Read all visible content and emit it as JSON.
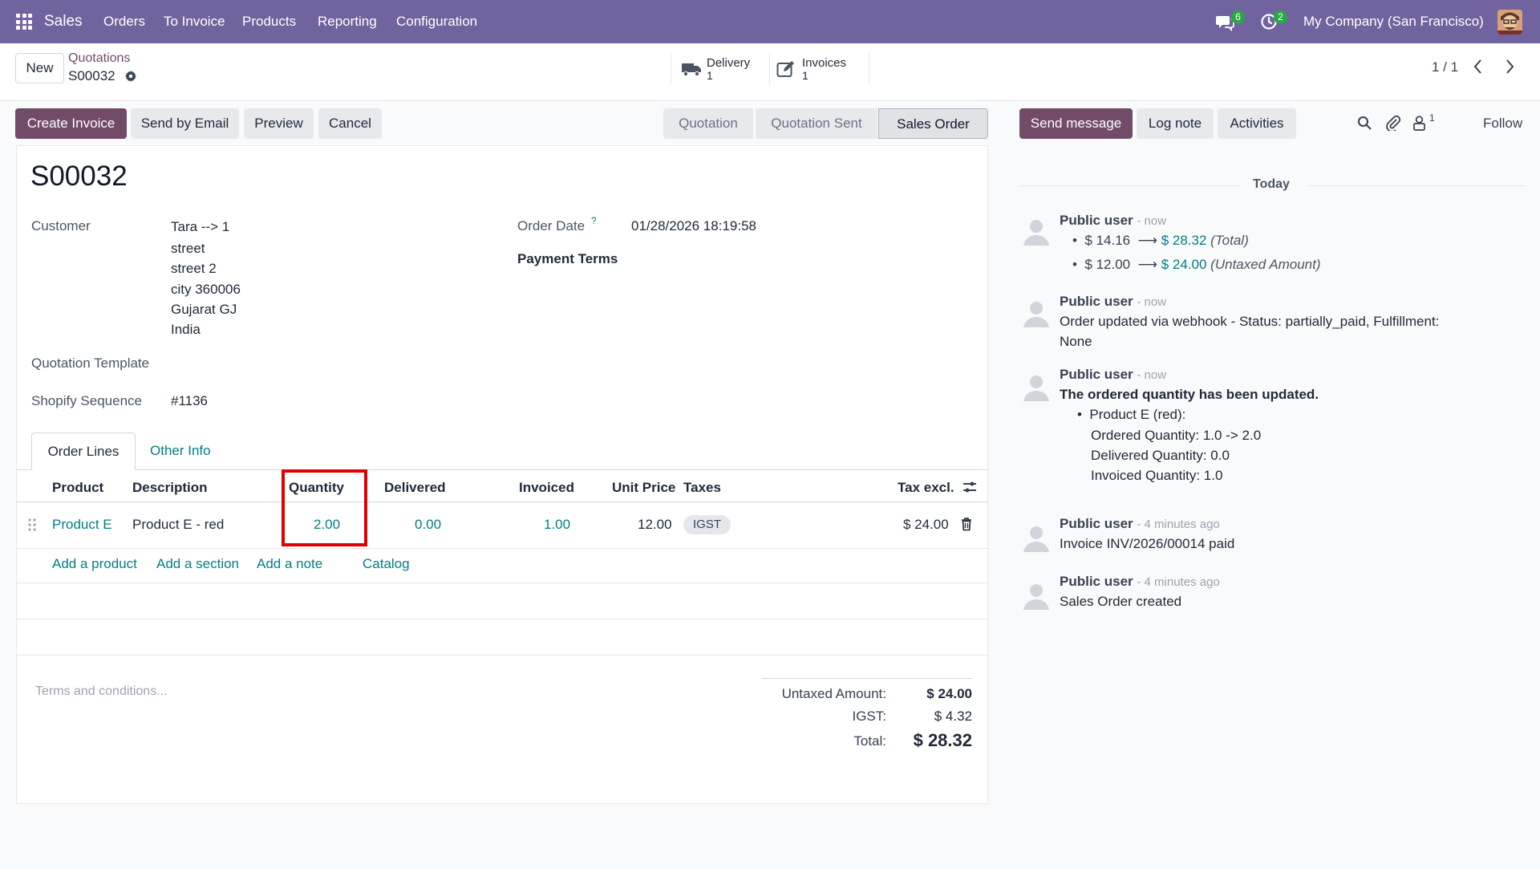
{
  "navbar": {
    "app_name": "Sales",
    "menu": [
      "Orders",
      "To Invoice",
      "Products",
      "Reporting",
      "Configuration"
    ],
    "messages_count": "6",
    "activities_count": "2",
    "company": "My Company (San Francisco)"
  },
  "control_panel": {
    "new_label": "New",
    "breadcrumb_parent": "Quotations",
    "record_name": "S00032",
    "smart_buttons": [
      {
        "label": "Delivery",
        "count": "1"
      },
      {
        "label": "Invoices",
        "count": "1"
      }
    ],
    "pager": "1 / 1"
  },
  "actions": {
    "create_invoice": "Create Invoice",
    "send_email": "Send by Email",
    "preview": "Preview",
    "cancel": "Cancel"
  },
  "statusbar": [
    "Quotation",
    "Quotation Sent",
    "Sales Order"
  ],
  "form": {
    "title": "S00032",
    "customer_label": "Customer",
    "customer_name": "Tara --> 1",
    "address": [
      "street",
      "street 2",
      "city 360006",
      "Gujarat GJ",
      "India"
    ],
    "order_date_label": "Order Date",
    "order_date_help": "?",
    "order_date": "01/28/2026 18:19:58",
    "payment_terms_label": "Payment Terms",
    "quotation_template_label": "Quotation Template",
    "shopify_sequence_label": "Shopify Sequence",
    "shopify_sequence": "#1136"
  },
  "tabs": [
    "Order Lines",
    "Other Info"
  ],
  "order_lines": {
    "headers": {
      "product": "Product",
      "description": "Description",
      "quantity": "Quantity",
      "delivered": "Delivered",
      "invoiced": "Invoiced",
      "unit_price": "Unit Price",
      "taxes": "Taxes",
      "tax_excl": "Tax excl."
    },
    "rows": [
      {
        "product": "Product E",
        "description": "Product E - red",
        "quantity": "2.00",
        "delivered": "0.00",
        "invoiced": "1.00",
        "unit_price": "12.00",
        "tax": "IGST",
        "subtotal": "$ 24.00"
      }
    ],
    "add_links": [
      "Add a product",
      "Add a section",
      "Add a note",
      "Catalog"
    ]
  },
  "footer": {
    "terms_placeholder": "Terms and conditions...",
    "untaxed_label": "Untaxed Amount:",
    "untaxed_value": "$ 24.00",
    "tax_label": "IGST:",
    "tax_value": "$ 4.32",
    "total_label": "Total:",
    "total_value": "$ 28.32"
  },
  "chatter": {
    "send_message": "Send message",
    "log_note": "Log note",
    "activities": "Activities",
    "followers_count": "1",
    "follow": "Follow",
    "date_separator": "Today",
    "messages": [
      {
        "author": "Public user",
        "time": "- now",
        "tracking": [
          {
            "old": "$ 14.16",
            "new": "$ 28.32",
            "field": "(Total)"
          },
          {
            "old": "$ 12.00",
            "new": "$ 24.00",
            "field": "(Untaxed Amount)"
          }
        ]
      },
      {
        "author": "Public user",
        "time": "- now",
        "body": "Order updated via webhook - Status: partially_paid, Fulfillment:",
        "body2": "None"
      },
      {
        "author": "Public user",
        "time": "- now",
        "heading": "The ordered quantity has been updated.",
        "bullet": "Product E (red):",
        "lines": [
          "Ordered Quantity: 1.0 -> 2.0",
          "Delivered Quantity: 0.0",
          "Invoiced Quantity: 1.0"
        ]
      },
      {
        "author": "Public user",
        "time": "- 4 minutes ago",
        "body": "Invoice INV/2026/00014 paid"
      },
      {
        "author": "Public user",
        "time": "- 4 minutes ago",
        "body": "Sales Order created"
      }
    ]
  },
  "colors": {
    "navbar": "#71639e",
    "primary": "#714b67",
    "link": "#017e84",
    "highlight_box": "#e00000",
    "badge": "#28a745"
  }
}
